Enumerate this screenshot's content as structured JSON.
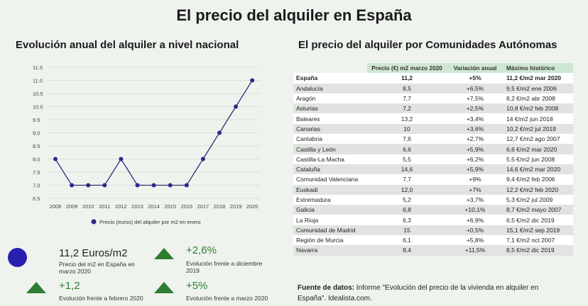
{
  "title": "El precio del alquiler en España",
  "left_subtitle": "Evolución anual del alquiler a nivel nacional",
  "right_subtitle": "El precio del alquiler por Comunidades Autónomas",
  "colors": {
    "line": "#2d2f7a",
    "marker": "#2a2a8a",
    "kpi_circle": "#2a1fb0",
    "kpi_up": "#2e7d32",
    "table_header": "#cfe7d2"
  },
  "chart_data": {
    "type": "line",
    "x": [
      2008,
      2009,
      2010,
      2011,
      2012,
      2013,
      2014,
      2015,
      2016,
      2017,
      2018,
      2019,
      2020
    ],
    "series": [
      {
        "name": "Precio (euros) del alquiler por m2 en enero",
        "values": [
          8.0,
          7.0,
          7.0,
          7.0,
          8.0,
          7.0,
          7.0,
          7.0,
          7.0,
          8.0,
          9.0,
          10.0,
          11.0
        ]
      }
    ],
    "yticks": [
      "6.5",
      "7.0",
      "7.5",
      "8.0",
      "8.5",
      "9.0",
      "9.5",
      "10.0",
      "10.5",
      "11.0",
      "11.5"
    ],
    "ylim": [
      6.5,
      11.5
    ],
    "grid": true,
    "legend": "bottom"
  },
  "kpis": [
    {
      "value": "11,2 Euros/m2",
      "desc": "Precio del m2 en España en marzo 2020",
      "icon": "circle"
    },
    {
      "value": "+2,6%",
      "desc": "Evolución frente a diciembre 2019",
      "icon": "triangle-up"
    },
    {
      "value": "+1,2",
      "desc": "Evolución frente a febrero 2020",
      "icon": "triangle-up"
    },
    {
      "value": "+5%",
      "desc": "Evolución frente a marzo 2020",
      "icon": "triangle-up"
    }
  ],
  "table": {
    "headers": [
      "",
      "Precio (€) m2 marzo 2020",
      "Variación anual",
      "Máximo histórico"
    ],
    "rows": [
      [
        "España",
        "11,2",
        "+5%",
        "11,2 €/m2 mar 2020"
      ],
      [
        "Andalucía",
        "8,5",
        "+6,5%",
        "9,5 €/m2 ene 2006"
      ],
      [
        "Aragón",
        "7,7",
        "+7,5%",
        "8,2 €/m2 abr 2008"
      ],
      [
        "Asturias",
        "7,2",
        "+2,5%",
        "10,8 €/m2 feb 2008"
      ],
      [
        "Baleares",
        "13,2",
        "+3,4%",
        "14 €/m2 jun 2018"
      ],
      [
        "Canarias",
        "10",
        "+3,6%",
        "10,2 €/m2 jul 2019"
      ],
      [
        "Cantabria",
        "7,6",
        "+2,7%",
        "12,7 €/m2 ago 2007"
      ],
      [
        "Castilla y León",
        "6,6",
        "+5,9%",
        "6,6 €/m2 mar 2020"
      ],
      [
        "Castilla-La Macha",
        "5,5",
        "+6,2%",
        "5,5 €/m2 jun 2008"
      ],
      [
        "Cataluña",
        "14,6",
        "+5,9%",
        "14,6 €/m2 mar 2020"
      ],
      [
        "Comunidad Valenciana",
        "7,7",
        "+9%",
        "9,4 €/m2 feb 2006"
      ],
      [
        "Euskadi",
        "12,0",
        "+7%",
        "12,2 €/m2 feb 2020"
      ],
      [
        "Extremadura",
        "5,2",
        "+3,7%",
        "5,3 €/m2 jul 2009"
      ],
      [
        "Galicia",
        "6,8",
        "+10,1%",
        "8,7 €/m2 mayo 2007"
      ],
      [
        "La Rioja",
        "6,3",
        "+6,9%",
        "6,5 €/m2 dic 2019"
      ],
      [
        "Comunidad de Madrid",
        "15",
        "+0,5%",
        "15,1 €/m2 sep 2019"
      ],
      [
        "Región de Murcia",
        "6,1",
        "+5,8%",
        "7,1 €/m2 oct 2007"
      ],
      [
        "Navarra",
        "8,4",
        "+11,5%",
        "8,5 €/m2 dic 2019"
      ]
    ]
  },
  "source": {
    "label": "Fuente de datos:",
    "text": " Informe \"Evolución del precio de la vivienda en alquiler en España\". Idealista.com."
  }
}
